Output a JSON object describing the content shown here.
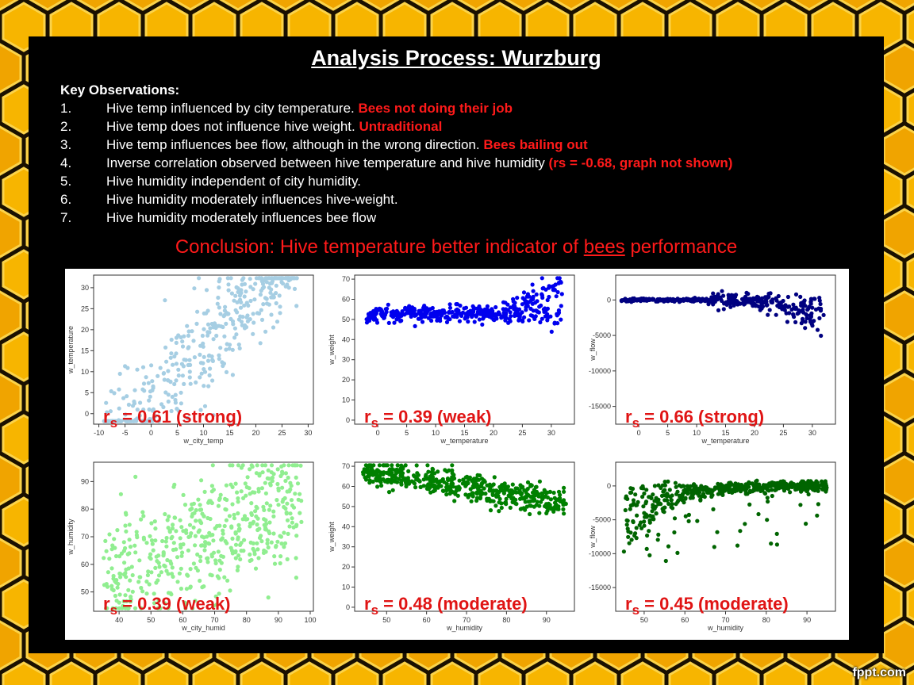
{
  "title": "Analysis Process: Wurzburg",
  "observations": {
    "heading": "Key Observations:",
    "items": [
      {
        "num": "1.",
        "text": "Hive temp influenced by city temperature. ",
        "highlight": "Bees not doing their job"
      },
      {
        "num": "2.",
        "text": "Hive temp does not influence hive weight. ",
        "highlight": "Untraditional"
      },
      {
        "num": "3.",
        "text": "Hive temp influences bee flow, although in the wrong direction. ",
        "highlight": "Bees bailing out"
      },
      {
        "num": "4.",
        "text": "Inverse correlation observed  between hive temperature and hive humidity ",
        "highlight": "(rs = -0.68, graph not shown)"
      },
      {
        "num": "5.",
        "text": "Hive humidity independent of city humidity.",
        "highlight": ""
      },
      {
        "num": "6.",
        "text": "Hive humidity moderately influences hive-weight.",
        "highlight": ""
      },
      {
        "num": "7.",
        "text": "Hive humidity moderately influences bee flow",
        "highlight": ""
      }
    ]
  },
  "conclusion": {
    "before": "Conclusion: Hive temperature better indicator of ",
    "underlined": "bees",
    "after": " performance"
  },
  "watermark": "fppt.com",
  "colors": {
    "accent_red": "#ff1a1a",
    "honey": "#f2a900",
    "light_blue": "#a6cee3",
    "blue": "#0000ee",
    "navy": "#000080",
    "light_green": "#90ee90",
    "green": "#008000",
    "dark_green": "#006400"
  },
  "chart_data": [
    {
      "type": "scatter",
      "xlabel": "w_city_temp",
      "ylabel": "w_temperature",
      "color": "#a6cee3",
      "xlim": [
        -11,
        31
      ],
      "ylim": [
        -2.5,
        33
      ],
      "xticks": [
        -10,
        -5,
        0,
        5,
        10,
        15,
        20,
        25,
        30
      ],
      "yticks": [
        0,
        5,
        10,
        15,
        20,
        25,
        30
      ],
      "annotation": {
        "r": "r",
        "sub": "s",
        "text": " = 0.61 (strong)"
      },
      "trend": "positive",
      "n": 420
    },
    {
      "type": "scatter",
      "xlabel": "w_temperature",
      "ylabel": "w_weight",
      "color": "#0000ee",
      "xlim": [
        -4,
        34
      ],
      "ylim": [
        -2,
        72
      ],
      "xticks": [
        0,
        5,
        10,
        15,
        20,
        25,
        30
      ],
      "yticks": [
        0,
        10,
        20,
        30,
        40,
        50,
        60,
        70
      ],
      "annotation": {
        "r": "r",
        "sub": "s",
        "text": " = 0.39 (weak)"
      },
      "trend": "flat-then-rise",
      "n": 420
    },
    {
      "type": "scatter",
      "xlabel": "w_temperature",
      "ylabel": "w_flow",
      "color": "#000080",
      "xlim": [
        -4,
        34
      ],
      "ylim": [
        -17500,
        3500
      ],
      "xticks": [
        0,
        5,
        10,
        15,
        20,
        25,
        30
      ],
      "yticks": [
        0,
        -5000,
        -10000,
        -15000
      ],
      "annotation": {
        "r": "r",
        "sub": "s",
        "text": " = 0.66 (strong)"
      },
      "trend": "flat-then-drop",
      "n": 420
    },
    {
      "type": "scatter",
      "xlabel": "w_city_humid",
      "ylabel": "w_humidity",
      "color": "#90ee90",
      "xlim": [
        32,
        101
      ],
      "ylim": [
        43,
        97
      ],
      "xticks": [
        40,
        50,
        60,
        70,
        80,
        90,
        100
      ],
      "yticks": [
        50,
        60,
        70,
        80,
        90
      ],
      "annotation": {
        "r": "r",
        "sub": "s",
        "text": " = 0.39 (weak)"
      },
      "trend": "weak-positive",
      "n": 520
    },
    {
      "type": "scatter",
      "xlabel": "w_humidity",
      "ylabel": "w_weight",
      "color": "#008000",
      "xlim": [
        42,
        97
      ],
      "ylim": [
        -2,
        72
      ],
      "xticks": [
        50,
        60,
        70,
        80,
        90
      ],
      "yticks": [
        0,
        10,
        20,
        30,
        40,
        50,
        60,
        70
      ],
      "annotation": {
        "r": "r",
        "sub": "s",
        "text": " = 0.48 (moderate)"
      },
      "trend": "negative",
      "n": 520
    },
    {
      "type": "scatter",
      "xlabel": "w_humidity",
      "ylabel": "w_flow",
      "color": "#006400",
      "xlim": [
        43,
        97
      ],
      "ylim": [
        -18500,
        3500
      ],
      "xticks": [
        50,
        60,
        70,
        80,
        90
      ],
      "yticks": [
        0,
        -5000,
        -10000,
        -15000
      ],
      "annotation": {
        "r": "r",
        "sub": "s",
        "text": " = 0.45 (moderate)"
      },
      "trend": "rise-to-zero",
      "n": 520
    }
  ]
}
